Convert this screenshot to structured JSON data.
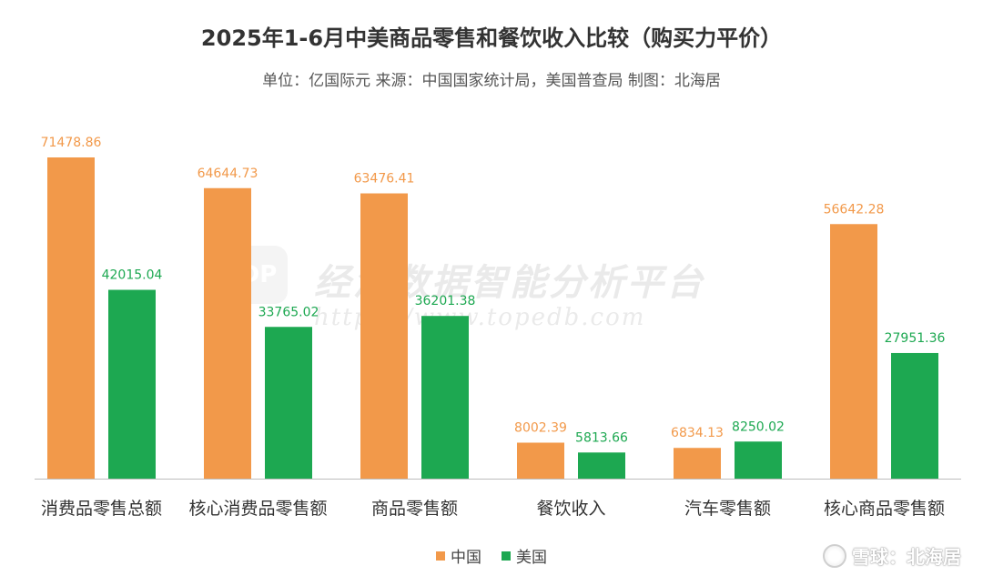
{
  "title": "2025年1-6月中美商品零售和餐饮收入比较（购买力平价）",
  "subtitle": "单位：亿国际元 来源：中国国家统计局，美国普查局 制图：北海居",
  "watermark": {
    "logo_text": "DP",
    "text": "经济数据智能分析平台",
    "url": "https://www.topedb.com"
  },
  "brand": {
    "icon": "snowball-icon",
    "text": "雪球：北海居"
  },
  "colors": {
    "china": "#F2994A",
    "usa": "#1DA851"
  },
  "chart_data": {
    "type": "bar",
    "title": "2025年1-6月中美商品零售和餐饮收入比较（购买力平价）",
    "subtitle": "单位：亿国际元 来源：中国国家统计局，美国普查局 制图：北海居",
    "categories": [
      "消费品零售总额",
      "核心消费品零售额",
      "商品零售额",
      "餐饮收入",
      "汽车零售额",
      "核心商品零售额"
    ],
    "series": [
      {
        "name": "中国",
        "values": [
          71478.86,
          64644.73,
          63476.41,
          8002.39,
          6834.13,
          56642.28
        ],
        "labels": [
          "71478.86",
          "64644.73",
          "63476.41",
          "8002.39",
          "6834.13",
          "56642.28"
        ]
      },
      {
        "name": "美国",
        "values": [
          42015.04,
          33765.02,
          36201.38,
          5813.66,
          8250.02,
          27951.36
        ],
        "labels": [
          "42015.04",
          "33765.02",
          "36201.38",
          "5813.66",
          "8250.02",
          "27951.36"
        ]
      }
    ],
    "ylim": [
      0,
      72000
    ],
    "grid": false,
    "legend": "bottom-center"
  }
}
